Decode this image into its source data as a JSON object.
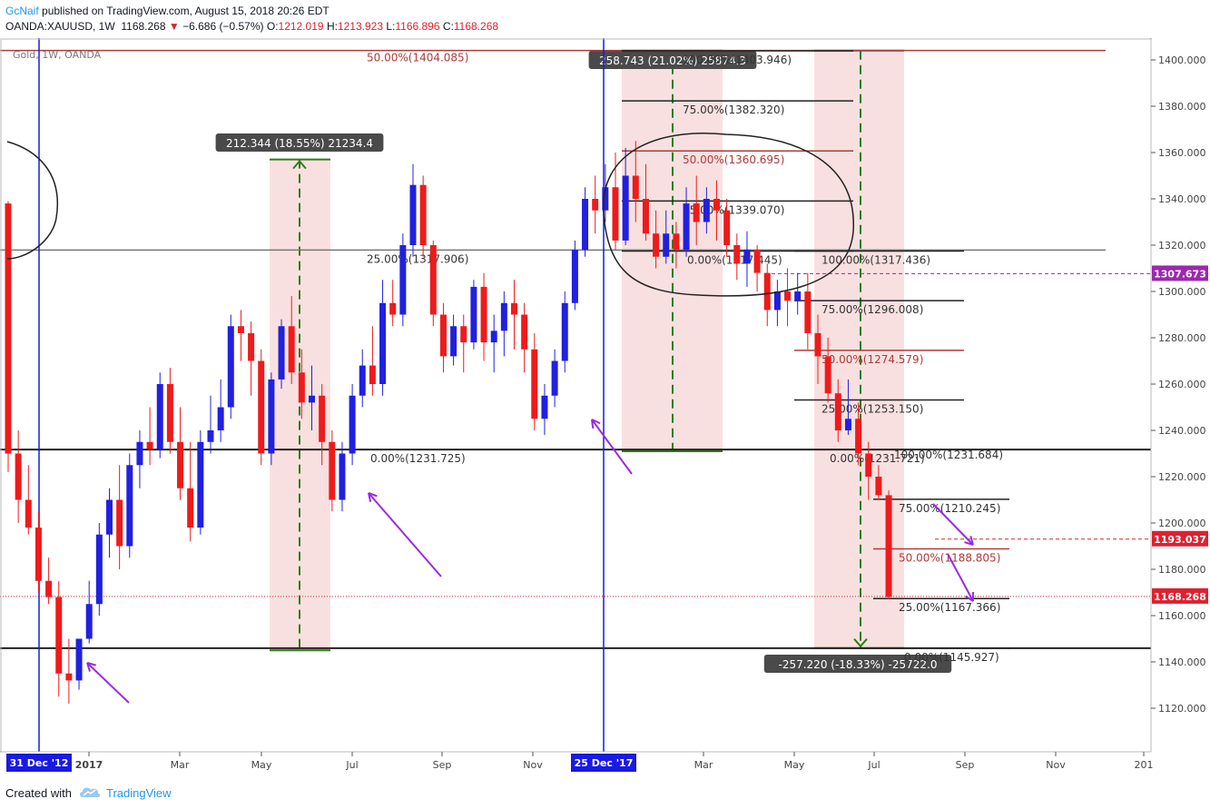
{
  "header": {
    "author": "GcNaif",
    "published_text": "published on TradingView.com, August 15, 2018 20:26 EDT",
    "symbol": "OANDA:XAUUSD, 1W",
    "last": "1168.268",
    "change_arrow": "▼",
    "change": "−6.686 (−0.57%)",
    "o_label": "O:",
    "o_value": "1212.019",
    "h_label": "H:",
    "h_value": "1213.923",
    "l_label": "L:",
    "l_value": "1166.896",
    "c_label": "C:",
    "c_value": "1168.268"
  },
  "footer": {
    "created_with": "Created with",
    "brand": "TradingView"
  },
  "colors": {
    "up": "#2020e0",
    "down": "#ee1b1b",
    "fib_red": "#b03a3a",
    "arrow": "#9a2be2",
    "green": "#2e7d1a",
    "range_fill": "#f8d8d8"
  },
  "chart_data": {
    "type": "candlestick",
    "title": "Gold, 1W, OANDA",
    "y_range": [
      1100,
      1410
    ],
    "y_ticks": [
      "1120.000",
      "1140.000",
      "1160.000",
      "1180.000",
      "1200.000",
      "1220.000",
      "1240.000",
      "1260.000",
      "1280.000",
      "1300.000",
      "1320.000",
      "1340.000",
      "1360.000",
      "1380.000",
      "1400.000"
    ],
    "x_ticks": [
      "2017",
      "Mar",
      "May",
      "Jul",
      "Sep",
      "Nov",
      "Mar",
      "May",
      "Jul",
      "Sep",
      "Nov",
      "201"
    ],
    "x_markers": [
      "31 Dec '12",
      "25 Dec '17"
    ],
    "price_tags": [
      {
        "value": 1307.673,
        "text": "1307.673",
        "color": "#9c27b0"
      },
      {
        "value": 1193.037,
        "text": "1193.037",
        "color": "#e0202f"
      },
      {
        "value": 1168.268,
        "text": "1168.268",
        "color": "#e0202f"
      }
    ],
    "candles": [
      [
        1338,
        1339,
        1222,
        1230
      ],
      [
        1230,
        1240,
        1200,
        1210
      ],
      [
        1210,
        1225,
        1195,
        1198
      ],
      [
        1198,
        1205,
        1170,
        1175
      ],
      [
        1175,
        1185,
        1165,
        1168
      ],
      [
        1168,
        1175,
        1125,
        1135
      ],
      [
        1135,
        1150,
        1122,
        1132
      ],
      [
        1132,
        1150,
        1128,
        1150
      ],
      [
        1150,
        1175,
        1148,
        1165
      ],
      [
        1165,
        1200,
        1160,
        1195
      ],
      [
        1195,
        1215,
        1185,
        1210
      ],
      [
        1210,
        1225,
        1180,
        1190
      ],
      [
        1190,
        1230,
        1185,
        1225
      ],
      [
        1225,
        1240,
        1215,
        1235
      ],
      [
        1235,
        1250,
        1225,
        1232
      ],
      [
        1232,
        1265,
        1228,
        1260
      ],
      [
        1260,
        1267,
        1230,
        1235
      ],
      [
        1235,
        1250,
        1210,
        1215
      ],
      [
        1215,
        1235,
        1192,
        1198
      ],
      [
        1198,
        1240,
        1195,
        1235
      ],
      [
        1235,
        1255,
        1230,
        1240
      ],
      [
        1240,
        1262,
        1235,
        1250
      ],
      [
        1250,
        1290,
        1245,
        1285
      ],
      [
        1285,
        1292,
        1270,
        1282
      ],
      [
        1282,
        1287,
        1255,
        1270
      ],
      [
        1270,
        1275,
        1225,
        1230
      ],
      [
        1230,
        1265,
        1225,
        1262
      ],
      [
        1262,
        1288,
        1258,
        1285
      ],
      [
        1285,
        1298,
        1260,
        1265
      ],
      [
        1265,
        1275,
        1245,
        1252
      ],
      [
        1252,
        1268,
        1240,
        1255
      ],
      [
        1255,
        1260,
        1225,
        1235
      ],
      [
        1235,
        1240,
        1205,
        1210
      ],
      [
        1210,
        1235,
        1205,
        1230
      ],
      [
        1230,
        1260,
        1225,
        1255
      ],
      [
        1255,
        1275,
        1250,
        1268
      ],
      [
        1268,
        1285,
        1255,
        1260
      ],
      [
        1260,
        1305,
        1255,
        1295
      ],
      [
        1295,
        1305,
        1285,
        1290
      ],
      [
        1290,
        1325,
        1285,
        1320
      ],
      [
        1320,
        1355,
        1315,
        1346
      ],
      [
        1346,
        1350,
        1315,
        1320
      ],
      [
        1320,
        1322,
        1285,
        1290
      ],
      [
        1290,
        1295,
        1265,
        1272
      ],
      [
        1272,
        1290,
        1268,
        1285
      ],
      [
        1285,
        1290,
        1265,
        1278
      ],
      [
        1278,
        1305,
        1275,
        1302
      ],
      [
        1302,
        1308,
        1270,
        1278
      ],
      [
        1278,
        1290,
        1265,
        1283
      ],
      [
        1283,
        1300,
        1272,
        1295
      ],
      [
        1295,
        1305,
        1275,
        1290
      ],
      [
        1290,
        1295,
        1265,
        1275
      ],
      [
        1275,
        1282,
        1240,
        1245
      ],
      [
        1245,
        1260,
        1238,
        1255
      ],
      [
        1255,
        1275,
        1250,
        1270
      ],
      [
        1270,
        1300,
        1265,
        1295
      ],
      [
        1295,
        1322,
        1292,
        1318
      ],
      [
        1318,
        1345,
        1315,
        1340
      ],
      [
        1340,
        1350,
        1325,
        1335
      ],
      [
        1335,
        1355,
        1330,
        1345
      ],
      [
        1345,
        1360,
        1318,
        1322
      ],
      [
        1322,
        1362,
        1320,
        1350
      ],
      [
        1350,
        1365,
        1330,
        1340
      ],
      [
        1340,
        1355,
        1322,
        1325
      ],
      [
        1325,
        1335,
        1310,
        1315
      ],
      [
        1315,
        1335,
        1312,
        1325
      ],
      [
        1325,
        1330,
        1310,
        1318
      ],
      [
        1318,
        1345,
        1315,
        1338
      ],
      [
        1338,
        1350,
        1320,
        1330
      ],
      [
        1330,
        1345,
        1325,
        1340
      ],
      [
        1340,
        1348,
        1322,
        1335
      ],
      [
        1335,
        1340,
        1315,
        1320
      ],
      [
        1320,
        1325,
        1305,
        1312
      ],
      [
        1312,
        1326,
        1302,
        1318
      ],
      [
        1318,
        1320,
        1300,
        1308
      ],
      [
        1308,
        1312,
        1285,
        1292
      ],
      [
        1292,
        1305,
        1285,
        1300
      ],
      [
        1300,
        1310,
        1285,
        1296
      ],
      [
        1296,
        1308,
        1290,
        1300
      ],
      [
        1300,
        1308,
        1275,
        1282
      ],
      [
        1282,
        1290,
        1260,
        1272
      ],
      [
        1272,
        1280,
        1252,
        1256
      ],
      [
        1256,
        1262,
        1235,
        1240
      ],
      [
        1240,
        1262,
        1238,
        1245
      ],
      [
        1245,
        1252,
        1225,
        1230
      ],
      [
        1230,
        1235,
        1210,
        1220
      ],
      [
        1220,
        1225,
        1210,
        1212
      ],
      [
        1212,
        1214,
        1167,
        1168
      ]
    ],
    "fib_sets": [
      {
        "name": "fib-2017",
        "levels": [
          {
            "value": 1317.906,
            "text": "25.00%(1317.906)"
          },
          {
            "value": 1231.725,
            "text": "0.00%(1231.725)"
          }
        ]
      },
      {
        "name": "fib-2018-top",
        "levels": [
          {
            "value": 1403.946,
            "text": "100.00%(1403.946)"
          },
          {
            "value": 1382.32,
            "text": "75.00%(1382.320)"
          },
          {
            "value": 1360.695,
            "text": "50.00%(1360.695)"
          },
          {
            "value": 1339.07,
            "text": "25.00%(1339.070)"
          },
          {
            "value": 1317.445,
            "text": "0.00%(1317.445)"
          }
        ]
      },
      {
        "name": "fib-2018-down",
        "levels": [
          {
            "value": 1317.436,
            "text": "100.00%(1317.436)"
          },
          {
            "value": 1296.008,
            "text": "75.00%(1296.008)"
          },
          {
            "value": 1274.579,
            "text": "50.00%(1274.579)"
          },
          {
            "value": 1253.15,
            "text": "25.00%(1253.150)"
          },
          {
            "value": 1231.721,
            "text": "0.00%(1231.721)"
          }
        ]
      },
      {
        "name": "fib-2018-low",
        "levels": [
          {
            "value": 1231.684,
            "text": "100.00%(1231.684)"
          },
          {
            "value": 1210.245,
            "text": "75.00%(1210.245)"
          },
          {
            "value": 1188.805,
            "text": "50.00%(1188.805)"
          },
          {
            "value": 1167.366,
            "text": "25.00%(1167.366)"
          },
          {
            "value": 1145.927,
            "text": "0.00%(1145.927)"
          }
        ]
      }
    ],
    "top_label": "50.00%(1404.085)",
    "range_boxes": [
      {
        "from": 1145.0,
        "to": 1357.0,
        "label": "212.344 (18.55%) 21234.4"
      },
      {
        "from": 1231.0,
        "to": 1404.0,
        "label": "258.743 (21.02%) 25874.3"
      },
      {
        "from": 1404.0,
        "to": 1146.0,
        "label": "-257.220 (-18.33%) -25722.0"
      }
    ]
  }
}
